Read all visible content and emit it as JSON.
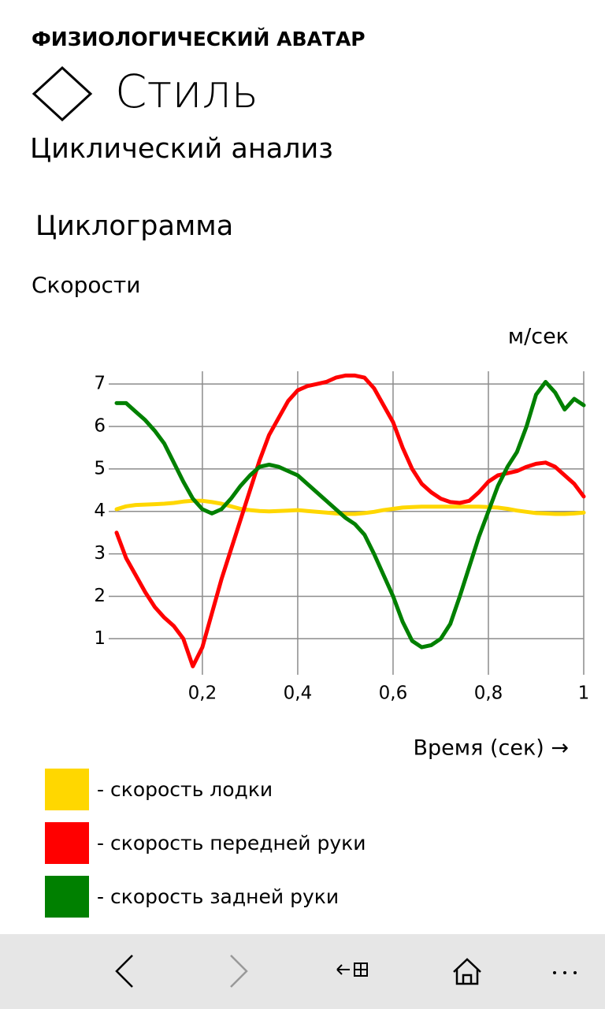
{
  "header": {
    "app_title": "ФИЗИОЛОГИЧЕСКИЙ АВАТАР",
    "page_title": "Стиль",
    "subtitle": "Циклический анализ"
  },
  "section_title": "Циклограмма",
  "chart_data": {
    "type": "line",
    "title": "Скорости",
    "y_label": "м/сек",
    "x_label": "Время (сек) →",
    "grid": true,
    "xlim": [
      0.02,
      1
    ],
    "ylim": [
      0.3,
      7.3
    ],
    "xticks": [
      {
        "value": 0.2,
        "label": "0,2"
      },
      {
        "value": 0.4,
        "label": "0,4"
      },
      {
        "value": 0.6,
        "label": "0,6"
      },
      {
        "value": 0.8,
        "label": "0,8"
      },
      1
    ],
    "yticks": [
      1,
      2,
      3,
      4,
      5,
      6,
      7
    ],
    "x": [
      0.02,
      0.04,
      0.06,
      0.08,
      0.1,
      0.12,
      0.14,
      0.16,
      0.18,
      0.2,
      0.22,
      0.24,
      0.26,
      0.28,
      0.3,
      0.32,
      0.34,
      0.36,
      0.38,
      0.4,
      0.42,
      0.44,
      0.46,
      0.48,
      0.5,
      0.52,
      0.54,
      0.56,
      0.58,
      0.6,
      0.62,
      0.64,
      0.66,
      0.68,
      0.7,
      0.72,
      0.74,
      0.76,
      0.78,
      0.8,
      0.82,
      0.84,
      0.86,
      0.88,
      0.9,
      0.92,
      0.94,
      0.96,
      0.98,
      1
    ],
    "series": [
      {
        "name": "- скорость лодки",
        "color": "#ffd700",
        "values": [
          4.05,
          4.12,
          4.15,
          4.16,
          4.17,
          4.18,
          4.2,
          4.23,
          4.25,
          4.25,
          4.22,
          4.18,
          4.12,
          4.06,
          4.03,
          4.01,
          4.0,
          4.01,
          4.02,
          4.03,
          4.01,
          3.99,
          3.97,
          3.95,
          3.94,
          3.94,
          3.96,
          3.99,
          4.03,
          4.06,
          4.09,
          4.1,
          4.11,
          4.11,
          4.11,
          4.11,
          4.11,
          4.11,
          4.11,
          4.1,
          4.09,
          4.06,
          4.02,
          3.99,
          3.96,
          3.95,
          3.94,
          3.94,
          3.95,
          3.97
        ]
      },
      {
        "name": "- скорость передней руки",
        "color": "#ff0000",
        "values": [
          3.5,
          2.9,
          2.5,
          2.1,
          1.75,
          1.5,
          1.3,
          1.0,
          0.35,
          0.8,
          1.6,
          2.4,
          3.1,
          3.8,
          4.5,
          5.2,
          5.8,
          6.2,
          6.6,
          6.85,
          6.95,
          7.0,
          7.05,
          7.15,
          7.2,
          7.2,
          7.15,
          6.9,
          6.5,
          6.1,
          5.5,
          5.0,
          4.65,
          4.45,
          4.3,
          4.22,
          4.2,
          4.25,
          4.45,
          4.7,
          4.85,
          4.9,
          4.95,
          5.05,
          5.12,
          5.15,
          5.05,
          4.85,
          4.65,
          4.35
        ]
      },
      {
        "name": "- скорость задней руки",
        "color": "#008000",
        "values": [
          6.55,
          6.55,
          6.35,
          6.15,
          5.9,
          5.6,
          5.15,
          4.7,
          4.3,
          4.05,
          3.95,
          4.05,
          4.3,
          4.6,
          4.85,
          5.05,
          5.1,
          5.05,
          4.95,
          4.85,
          4.65,
          4.45,
          4.25,
          4.05,
          3.85,
          3.7,
          3.45,
          3.0,
          2.5,
          2.0,
          1.4,
          0.95,
          0.8,
          0.85,
          1.0,
          1.35,
          2.0,
          2.7,
          3.4,
          4.0,
          4.6,
          5.05,
          5.4,
          6.0,
          6.75,
          7.05,
          6.8,
          6.4,
          6.65,
          6.5
        ]
      }
    ]
  }
}
